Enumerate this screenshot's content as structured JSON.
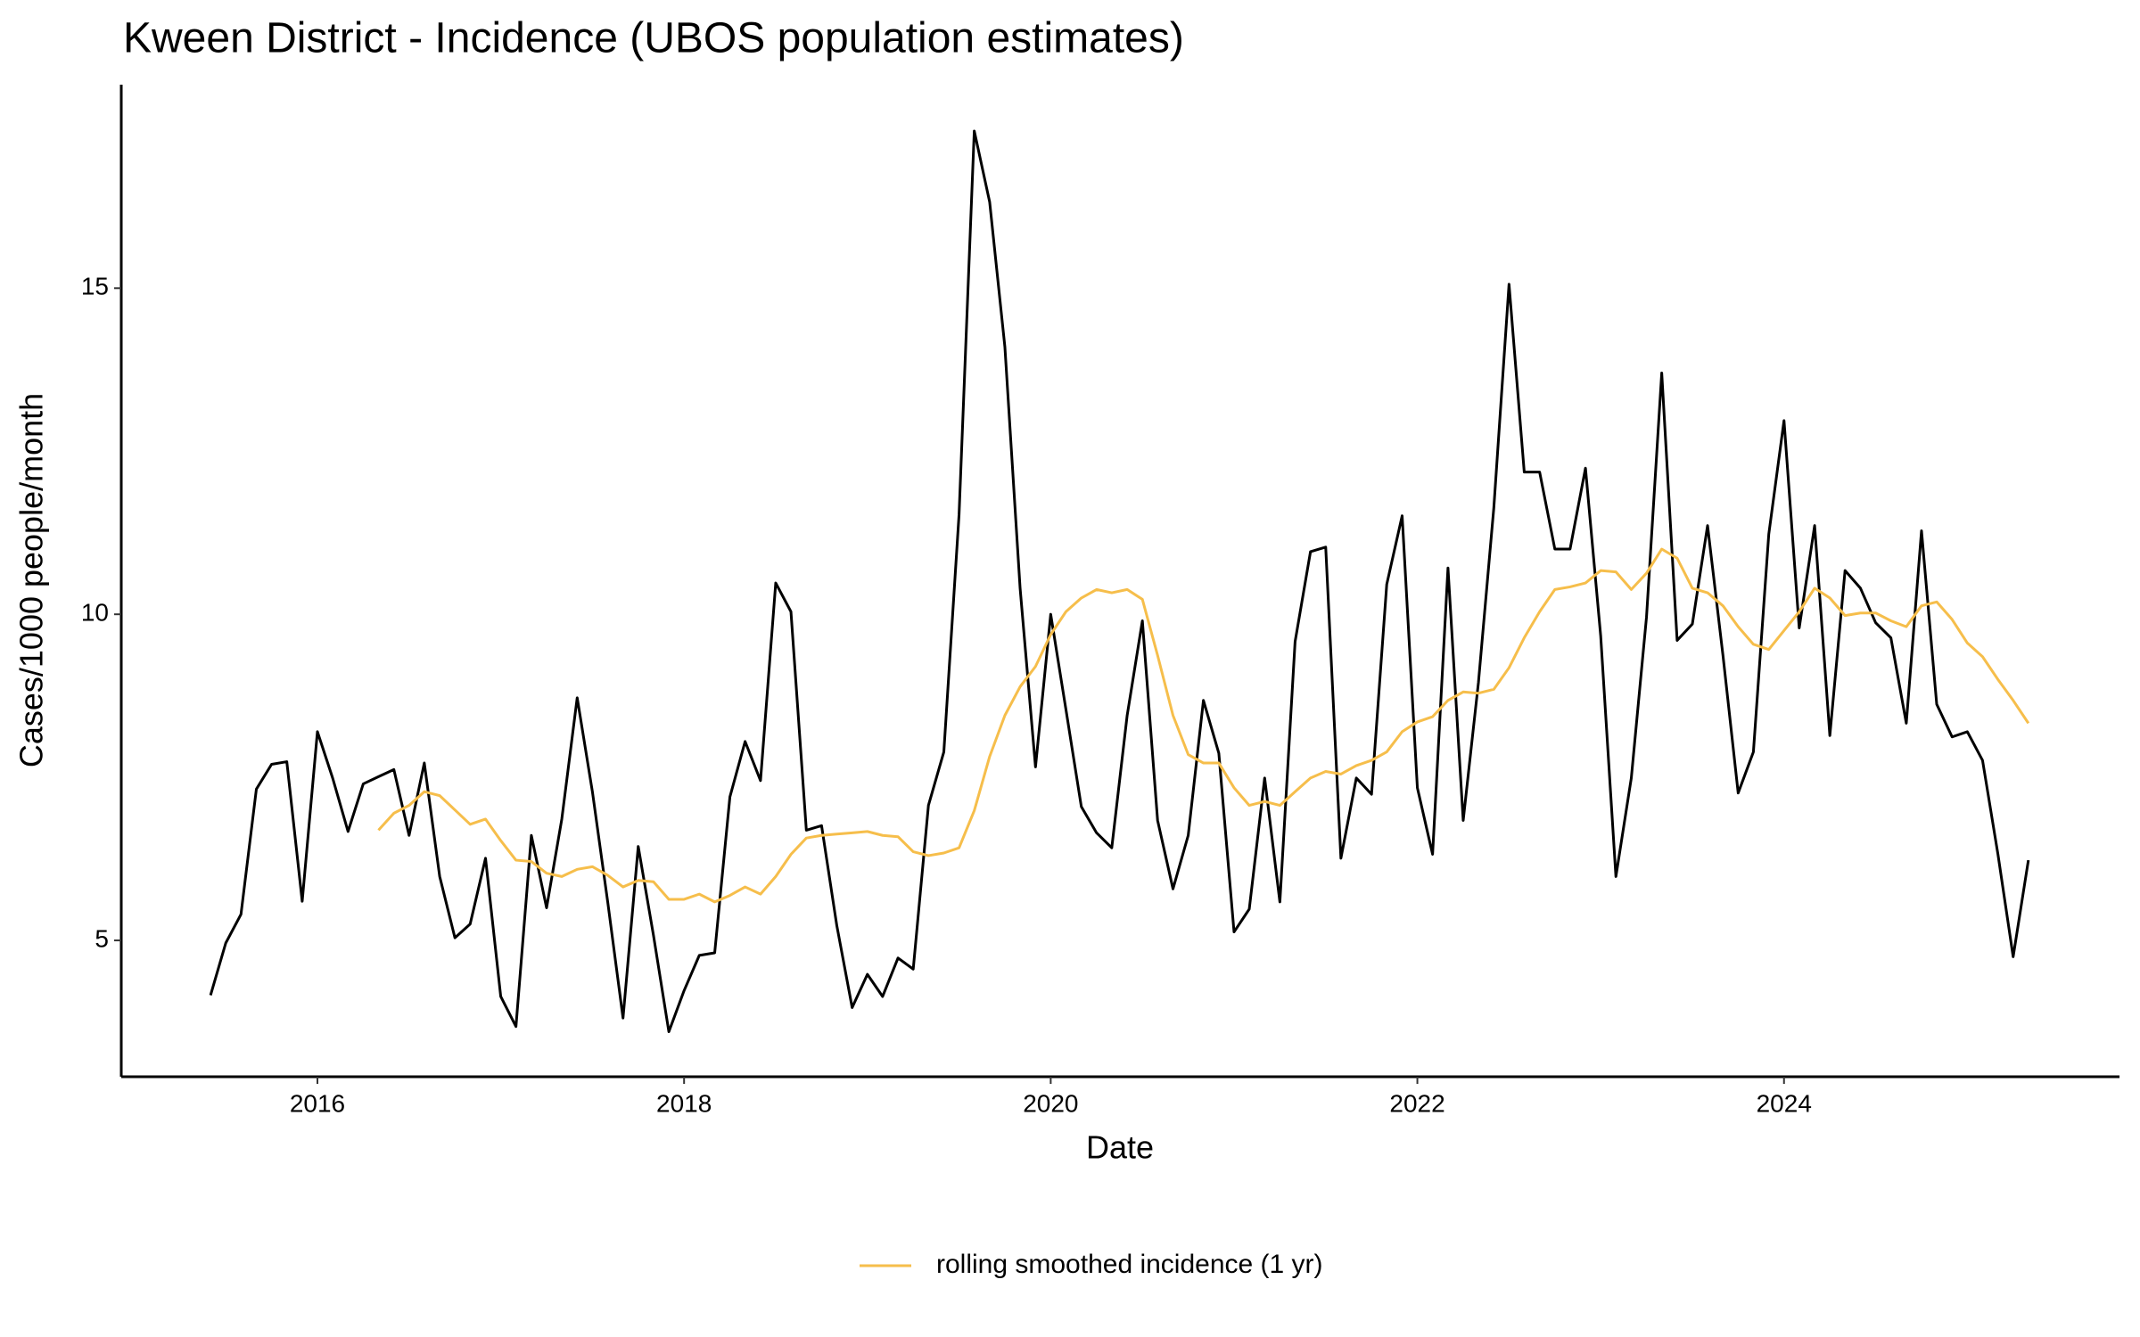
{
  "chart_data": {
    "type": "line",
    "title": "Kween District - Incidence (UBOS population estimates)",
    "x_label": "Date",
    "y_label": "Cases/1000 people/month",
    "x": [
      2015.417,
      2015.5,
      2015.583,
      2015.667,
      2015.75,
      2015.833,
      2015.917,
      2016,
      2016.083,
      2016.167,
      2016.25,
      2016.333,
      2016.417,
      2016.5,
      2016.583,
      2016.667,
      2016.75,
      2016.833,
      2016.917,
      2017,
      2017.083,
      2017.167,
      2017.25,
      2017.333,
      2017.417,
      2017.5,
      2017.583,
      2017.667,
      2017.75,
      2017.833,
      2017.917,
      2018,
      2018.083,
      2018.167,
      2018.25,
      2018.333,
      2018.417,
      2018.5,
      2018.583,
      2018.667,
      2018.75,
      2018.833,
      2018.917,
      2019,
      2019.083,
      2019.167,
      2019.25,
      2019.333,
      2019.417,
      2019.5,
      2019.583,
      2019.667,
      2019.75,
      2019.833,
      2019.917,
      2020,
      2020.083,
      2020.167,
      2020.25,
      2020.333,
      2020.417,
      2020.5,
      2020.583,
      2020.667,
      2020.75,
      2020.833,
      2020.917,
      2021,
      2021.083,
      2021.167,
      2021.25,
      2021.333,
      2021.417,
      2021.5,
      2021.583,
      2021.667,
      2021.75,
      2021.833,
      2021.917,
      2022,
      2022.083,
      2022.167,
      2022.25,
      2022.333,
      2022.417,
      2022.5,
      2022.583,
      2022.667,
      2022.75,
      2022.833,
      2022.917,
      2023,
      2023.083,
      2023.167,
      2023.25,
      2023.333,
      2023.417,
      2023.5,
      2023.583,
      2023.667,
      2023.75,
      2023.833,
      2023.917,
      2024,
      2024.083,
      2024.167,
      2024.25,
      2024.333,
      2024.417,
      2024.5,
      2024.583,
      2024.667,
      2024.75,
      2024.833,
      2024.917,
      2025,
      2025.083,
      2025.167,
      2025.25,
      2025.333
    ],
    "series": [
      {
        "color": "#000000",
        "values": [
          4.16,
          4.96,
          5.4,
          7.32,
          7.7,
          7.74,
          5.6,
          8.2,
          7.49,
          6.67,
          7.4,
          7.51,
          7.62,
          6.61,
          7.72,
          5.98,
          5.04,
          5.25,
          6.26,
          4.14,
          3.68,
          6.61,
          5.5,
          6.86,
          8.72,
          7.28,
          5.6,
          3.81,
          6.44,
          5.08,
          3.6,
          4.23,
          4.77,
          4.81,
          7.2,
          8.05,
          7.45,
          10.48,
          10.04,
          6.69,
          6.76,
          5.23,
          3.97,
          4.48,
          4.14,
          4.73,
          4.56,
          7.07,
          7.89,
          11.53,
          17.41,
          16.32,
          14.1,
          10.4,
          7.66,
          10.0,
          8.54,
          7.05,
          6.65,
          6.42,
          8.45,
          9.9,
          6.84,
          5.79,
          6.61,
          8.68,
          7.87,
          5.13,
          5.48,
          7.49,
          5.59,
          9.58,
          10.96,
          11.03,
          6.26,
          7.49,
          7.24,
          10.46,
          11.51,
          7.34,
          6.32,
          10.71,
          6.84,
          8.95,
          11.63,
          15.06,
          12.18,
          12.18,
          11.0,
          11.0,
          12.24,
          9.67,
          5.98,
          7.49,
          9.96,
          13.7,
          9.6,
          9.85,
          11.36,
          9.37,
          7.26,
          7.89,
          11.23,
          12.97,
          9.79,
          11.36,
          8.14,
          10.67,
          10.4,
          9.87,
          9.64,
          8.33,
          11.28,
          8.62,
          8.12,
          8.2,
          7.76,
          6.32,
          4.75,
          6.23
        ]
      },
      {
        "name": "rolling smoothed incidence (1 yr)",
        "color": "#f6be4b",
        "values": [
          null,
          null,
          null,
          null,
          null,
          null,
          null,
          null,
          null,
          null,
          null,
          6.69,
          6.95,
          7.07,
          7.28,
          7.22,
          7.0,
          6.78,
          6.86,
          6.53,
          6.23,
          6.21,
          6.03,
          5.98,
          6.09,
          6.13,
          6.0,
          5.82,
          5.92,
          5.9,
          5.63,
          5.63,
          5.71,
          5.59,
          5.69,
          5.82,
          5.71,
          5.98,
          6.32,
          6.57,
          6.61,
          6.63,
          6.65,
          6.67,
          6.61,
          6.59,
          6.36,
          6.3,
          6.34,
          6.42,
          6.99,
          7.82,
          8.45,
          8.89,
          9.2,
          9.69,
          10.04,
          10.25,
          10.38,
          10.33,
          10.38,
          10.23,
          9.37,
          8.45,
          7.85,
          7.72,
          7.72,
          7.34,
          7.07,
          7.13,
          7.07,
          7.28,
          7.49,
          7.59,
          7.55,
          7.68,
          7.76,
          7.89,
          8.2,
          8.35,
          8.43,
          8.68,
          8.81,
          8.79,
          8.85,
          9.18,
          9.64,
          10.04,
          10.38,
          10.42,
          10.48,
          10.67,
          10.65,
          10.38,
          10.63,
          11.0,
          10.86,
          10.4,
          10.33,
          10.13,
          9.81,
          9.54,
          9.46,
          9.75,
          10.04,
          10.4,
          10.25,
          9.98,
          10.02,
          10.02,
          9.9,
          9.81,
          10.13,
          10.19,
          9.92,
          9.56,
          9.35,
          9.0,
          8.68,
          8.33
        ]
      }
    ],
    "xlim": [
      2014.93,
      2025.83
    ],
    "xticks": [
      2016,
      2018,
      2020,
      2022,
      2024
    ],
    "ylim": [
      2.91,
      18.12
    ],
    "yticks": [
      5,
      10,
      15
    ],
    "grid": false,
    "legend": "bottom"
  }
}
